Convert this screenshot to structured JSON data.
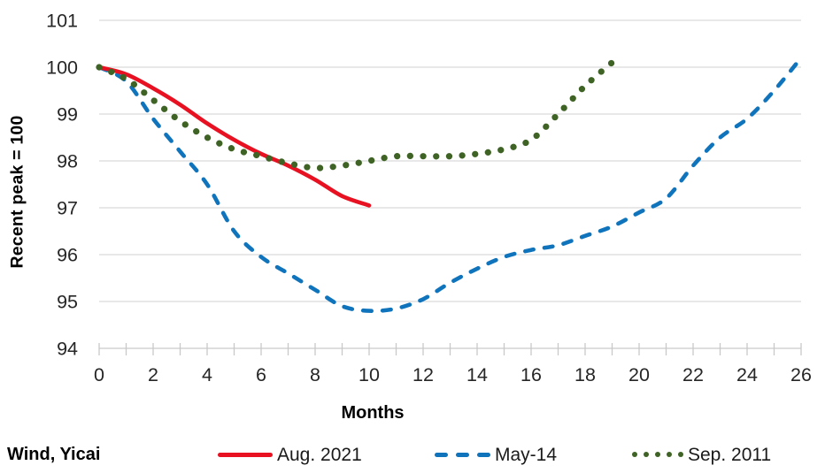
{
  "footer": {
    "source_label": "Wind, Yicai"
  },
  "chart_data": {
    "type": "line",
    "title": "",
    "xlabel": "Months",
    "ylabel": "Recent peak = 100",
    "xlim": [
      0,
      26
    ],
    "ylim": [
      94,
      101
    ],
    "x_ticks_labeled": [
      0,
      2,
      4,
      6,
      8,
      10,
      12,
      14,
      16,
      18,
      20,
      22,
      24,
      26
    ],
    "x_minor_tick_every": 1,
    "y_ticks": [
      94,
      95,
      96,
      97,
      98,
      99,
      100,
      101
    ],
    "grid": "horizontal",
    "legend_position": "bottom",
    "colors": {
      "gridline": "#d9d9d9",
      "axis_line": "#c9c9c9",
      "tick": "#c9c9c9",
      "tick_text": "#262626",
      "red": "#e81122",
      "blue": "#1074bc",
      "green": "#3e6325"
    },
    "series": [
      {
        "name": "Aug. 2021",
        "color": "#e81122",
        "style": "solid",
        "x": [
          0,
          1,
          2,
          3,
          4,
          5,
          6,
          7,
          8,
          9,
          10
        ],
        "values": [
          100,
          99.85,
          99.55,
          99.2,
          98.8,
          98.45,
          98.15,
          97.9,
          97.6,
          97.25,
          97.05
        ]
      },
      {
        "name": "May-14",
        "color": "#1074bc",
        "style": "dashed",
        "x": [
          0,
          1,
          2,
          3,
          4,
          5,
          6,
          7,
          8,
          9,
          10,
          11,
          12,
          13,
          14,
          15,
          16,
          17,
          18,
          19,
          20,
          21,
          22,
          23,
          24,
          25,
          26
        ],
        "values": [
          100,
          99.7,
          98.9,
          98.2,
          97.5,
          96.5,
          95.95,
          95.6,
          95.25,
          94.9,
          94.8,
          94.85,
          95.05,
          95.4,
          95.7,
          95.95,
          96.1,
          96.2,
          96.4,
          96.6,
          96.9,
          97.2,
          97.9,
          98.5,
          98.9,
          99.5,
          100.2
        ]
      },
      {
        "name": "Sep. 2011",
        "color": "#3e6325",
        "style": "dotted",
        "x": [
          0,
          1,
          2,
          3,
          4,
          5,
          6,
          7,
          8,
          9,
          10,
          11,
          12,
          13,
          14,
          15,
          16,
          17,
          18,
          19
        ],
        "values": [
          100,
          99.75,
          99.3,
          98.85,
          98.5,
          98.25,
          98.1,
          97.95,
          97.85,
          97.9,
          98.0,
          98.1,
          98.1,
          98.1,
          98.15,
          98.25,
          98.45,
          99.0,
          99.6,
          100.1
        ]
      }
    ]
  }
}
